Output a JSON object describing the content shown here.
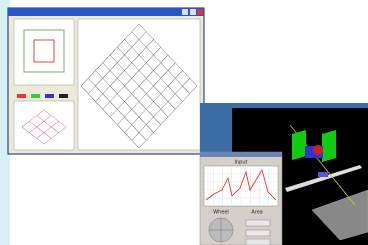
{
  "input_panel": {
    "title": "Input",
    "labels": [
      "Wheel",
      "Area"
    ]
  }
}
